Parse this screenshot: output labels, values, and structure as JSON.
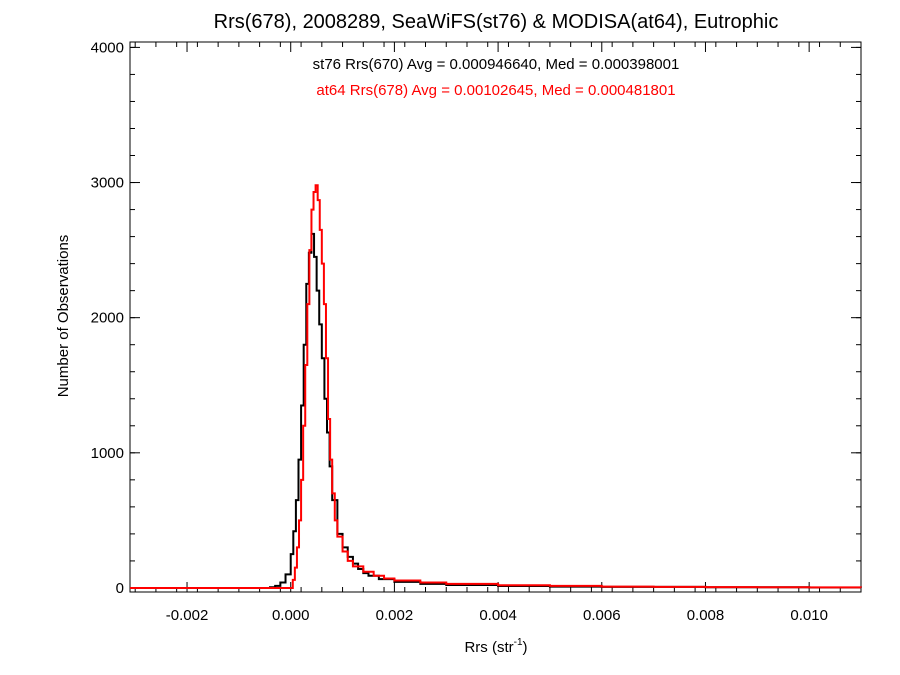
{
  "chart_data": {
    "type": "line",
    "title": "Rrs(678), 2008289, SeaWiFS(st76) & MODISA(at64), Eutrophic",
    "xlabel_main": "Rrs (str",
    "xlabel_sup": "-1",
    "xlabel_close": ")",
    "ylabel": "Number of Observations",
    "xlim": [
      -0.0031,
      0.011
    ],
    "ylim": [
      -30,
      4040
    ],
    "x_ticks": [
      -0.002,
      0.0,
      0.002,
      0.004,
      0.006,
      0.008,
      0.01
    ],
    "x_tick_labels": [
      "-0.002",
      "0.000",
      "0.002",
      "0.004",
      "0.006",
      "0.008",
      "0.010"
    ],
    "y_ticks": [
      0,
      1000,
      2000,
      3000,
      4000
    ],
    "y_tick_labels": [
      "0",
      "1000",
      "2000",
      "3000",
      "4000"
    ],
    "grid": false,
    "legend": [
      {
        "text": "st76 Rrs(670) Avg = 0.000946640, Med = 0.000398001",
        "color": "#000000"
      },
      {
        "text": "at64 Rrs(678) Avg = 0.00102645, Med = 0.000481801",
        "color": "#ff0000"
      }
    ],
    "series": [
      {
        "color": "#000000",
        "points": [
          [
            -0.0031,
            0
          ],
          [
            -0.0006,
            0
          ],
          [
            -0.0004,
            5
          ],
          [
            -0.0003,
            15
          ],
          [
            -0.0002,
            40
          ],
          [
            -0.0001,
            100
          ],
          [
            0.0,
            250
          ],
          [
            5e-05,
            420
          ],
          [
            0.0001,
            650
          ],
          [
            0.00015,
            950
          ],
          [
            0.0002,
            1350
          ],
          [
            0.00025,
            1800
          ],
          [
            0.0003,
            2250
          ],
          [
            0.00035,
            2480
          ],
          [
            0.0004,
            2620
          ],
          [
            0.00045,
            2450
          ],
          [
            0.0005,
            2200
          ],
          [
            0.00055,
            1950
          ],
          [
            0.0006,
            1700
          ],
          [
            0.00065,
            1400
          ],
          [
            0.0007,
            1150
          ],
          [
            0.00075,
            900
          ],
          [
            0.0008,
            650
          ],
          [
            0.0009,
            400
          ],
          [
            0.001,
            300
          ],
          [
            0.0011,
            230
          ],
          [
            0.0012,
            180
          ],
          [
            0.0013,
            140
          ],
          [
            0.0014,
            110
          ],
          [
            0.0015,
            90
          ],
          [
            0.0017,
            65
          ],
          [
            0.002,
            45
          ],
          [
            0.0025,
            30
          ],
          [
            0.003,
            22
          ],
          [
            0.004,
            14
          ],
          [
            0.005,
            10
          ],
          [
            0.006,
            8
          ],
          [
            0.008,
            5
          ],
          [
            0.01,
            3
          ],
          [
            0.011,
            2
          ]
        ]
      },
      {
        "color": "#ff0000",
        "points": [
          [
            -0.0031,
            0
          ],
          [
            2e-05,
            0
          ],
          [
            4e-05,
            60
          ],
          [
            8e-05,
            150
          ],
          [
            0.00012,
            300
          ],
          [
            0.00016,
            500
          ],
          [
            0.0002,
            800
          ],
          [
            0.00024,
            1200
          ],
          [
            0.00028,
            1650
          ],
          [
            0.00032,
            2100
          ],
          [
            0.00036,
            2500
          ],
          [
            0.0004,
            2800
          ],
          [
            0.00044,
            2930
          ],
          [
            0.00048,
            2980
          ],
          [
            0.00052,
            2870
          ],
          [
            0.00056,
            2650
          ],
          [
            0.0006,
            2400
          ],
          [
            0.00064,
            2100
          ],
          [
            0.00068,
            1700
          ],
          [
            0.00072,
            1250
          ],
          [
            0.00076,
            950
          ],
          [
            0.0008,
            700
          ],
          [
            0.00085,
            500
          ],
          [
            0.0009,
            380
          ],
          [
            0.001,
            270
          ],
          [
            0.0011,
            200
          ],
          [
            0.0012,
            160
          ],
          [
            0.0014,
            120
          ],
          [
            0.0016,
            90
          ],
          [
            0.0018,
            70
          ],
          [
            0.002,
            55
          ],
          [
            0.0025,
            40
          ],
          [
            0.003,
            30
          ],
          [
            0.004,
            20
          ],
          [
            0.005,
            15
          ],
          [
            0.006,
            10
          ],
          [
            0.007,
            8
          ],
          [
            0.008,
            6
          ],
          [
            0.009,
            5
          ],
          [
            0.01,
            4
          ],
          [
            0.011,
            3
          ]
        ]
      }
    ]
  }
}
